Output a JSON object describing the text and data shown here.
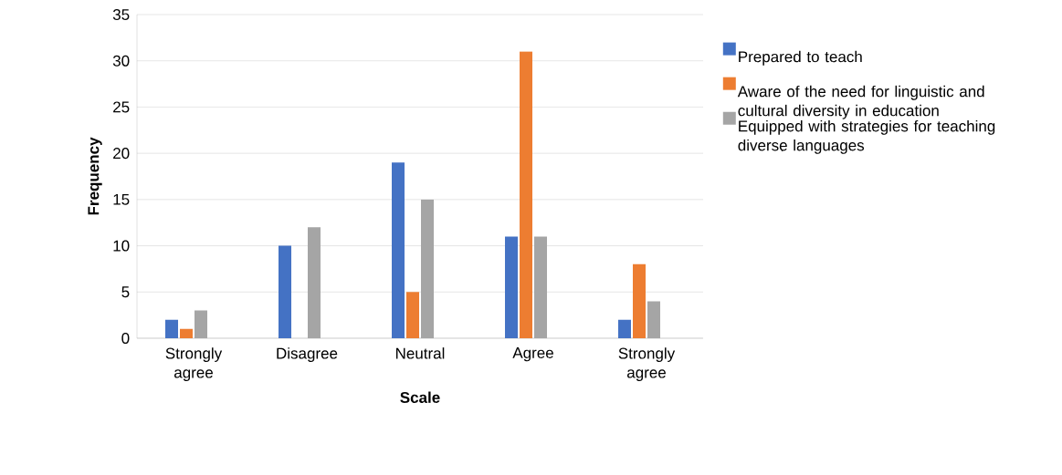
{
  "chart_data": {
    "type": "bar",
    "xlabel": "Scale",
    "ylabel": "Frequency",
    "categories": [
      "Strongly agree",
      "Disagree",
      "Neutral",
      "Agree",
      "Strongly agree"
    ],
    "series": [
      {
        "name": "Prepared to teach",
        "color": "#4472c4",
        "values": [
          2,
          10,
          19,
          11,
          2
        ]
      },
      {
        "name": "Aware of the need for linguistic and cultural diversity in education",
        "color": "#ed7d31",
        "values": [
          1,
          null,
          5,
          31,
          8
        ]
      },
      {
        "name": "Equipped with strategies for teaching diverse languages",
        "color": "#a5a5a5",
        "values": [
          3,
          12,
          15,
          11,
          4
        ]
      },
      {
        "color": "#ffc000",
        "values": [
          null,
          null,
          null,
          null,
          null
        ]
      }
    ],
    "ylim": [
      0,
      35
    ],
    "yticks": [
      0,
      5,
      10,
      15,
      20,
      25,
      30,
      35
    ],
    "grid": "y",
    "legend": "right"
  }
}
